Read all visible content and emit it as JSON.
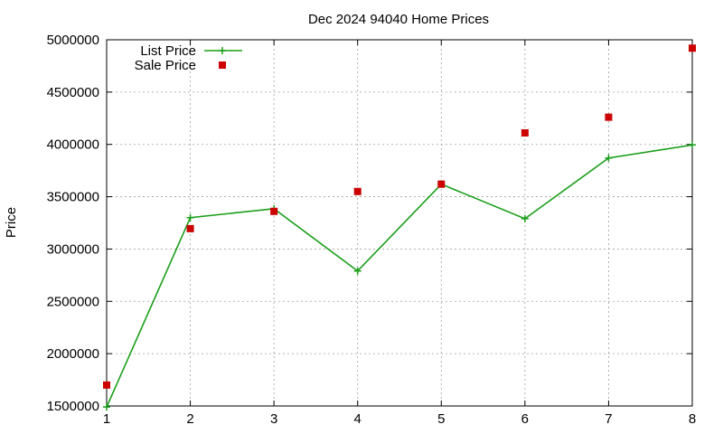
{
  "chart_data": {
    "type": "line",
    "title": "Dec 2024 94040 Home Prices",
    "xlabel": "",
    "ylabel": "Price",
    "xlim": [
      1,
      8
    ],
    "ylim": [
      1500000,
      5000000
    ],
    "x_ticks": [
      1,
      2,
      3,
      4,
      5,
      6,
      7,
      8
    ],
    "y_ticks": [
      1500000,
      2000000,
      2500000,
      3000000,
      3500000,
      4000000,
      4500000,
      5000000
    ],
    "grid": true,
    "legend_position": "top-left",
    "x": [
      1,
      2,
      3,
      4,
      5,
      6,
      7,
      8
    ],
    "series": [
      {
        "name": "List Price",
        "kind": "linespoints",
        "color": "#1a9e1a",
        "marker": "plus",
        "values": [
          1490000,
          3300000,
          3385000,
          2790000,
          3620000,
          3290000,
          3870000,
          3995000
        ]
      },
      {
        "name": "Sale Price",
        "kind": "points",
        "color": "#cc0000",
        "marker": "square",
        "values": [
          1700000,
          3195000,
          3360000,
          3550000,
          3620000,
          4110000,
          4260000,
          4920000
        ]
      }
    ]
  }
}
